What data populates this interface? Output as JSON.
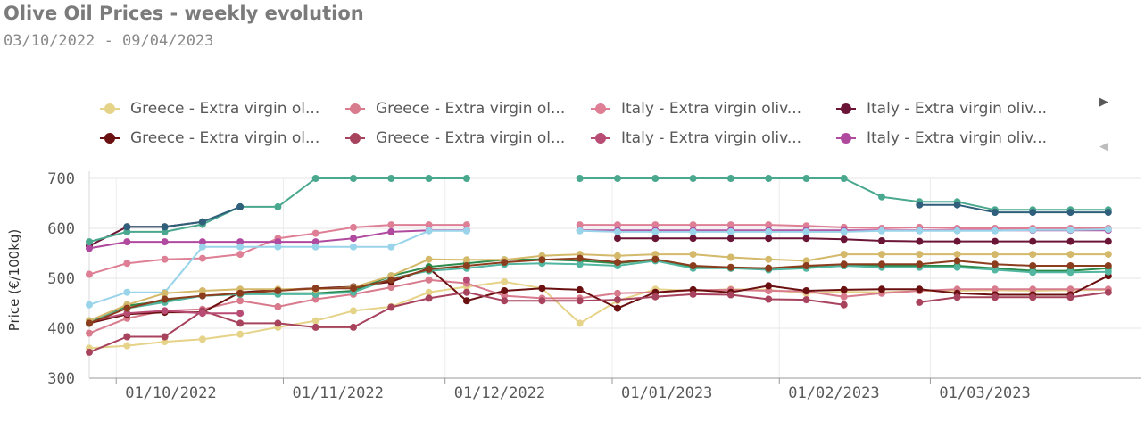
{
  "title": "Olive Oil Prices - weekly evolution",
  "subtitle": "03/10/2022 - 09/04/2023",
  "chart_data": {
    "type": "line",
    "ylabel": "Price (€/100kg)",
    "xlabel": "",
    "ylim": [
      300,
      700
    ],
    "yticks": [
      300,
      400,
      500,
      600,
      700
    ],
    "grid": true,
    "legend_position": "top",
    "x_range": [
      "2022-09-26",
      "2023-04-09"
    ],
    "x": [
      "2022-09-26",
      "2022-10-03",
      "2022-10-10",
      "2022-10-17",
      "2022-10-24",
      "2022-10-31",
      "2022-11-07",
      "2022-11-14",
      "2022-11-21",
      "2022-11-28",
      "2022-12-05",
      "2022-12-12",
      "2022-12-19",
      "2022-12-26",
      "2023-01-02",
      "2023-01-09",
      "2023-01-16",
      "2023-01-23",
      "2023-01-30",
      "2023-02-06",
      "2023-02-13",
      "2023-02-20",
      "2023-02-27",
      "2023-03-06",
      "2023-03-13",
      "2023-03-20",
      "2023-03-27",
      "2023-04-03"
    ],
    "x_ticks": [
      {
        "date": "2022-10-01",
        "label": "01/10/2022"
      },
      {
        "date": "2022-11-01",
        "label": "01/11/2022"
      },
      {
        "date": "2022-12-01",
        "label": "01/12/2022"
      },
      {
        "date": "2023-01-01",
        "label": "01/01/2023"
      },
      {
        "date": "2023-02-01",
        "label": "01/02/2023"
      },
      {
        "date": "2023-03-01",
        "label": "01/03/2023"
      }
    ],
    "series": [
      {
        "name": "Greece - Extra virgin ol...",
        "color": "#e6d38a",
        "legend_row": 0,
        "values": [
          360,
          365,
          373,
          378,
          388,
          402,
          415,
          435,
          443,
          472,
          483,
          493,
          480,
          410,
          455,
          478,
          475,
          478,
          477,
          470,
          473,
          472,
          475,
          475,
          476,
          475,
          476,
          477
        ]
      },
      {
        "name": "Greece - Extra virgin ol...",
        "color": "#d77b8d",
        "legend_row": 0,
        "values": [
          390,
          420,
          435,
          438,
          455,
          443,
          458,
          468,
          482,
          497,
          490,
          465,
          460,
          460,
          470,
          472,
          476,
          477,
          475,
          474,
          463,
          470,
          475,
          478,
          478,
          478,
          478,
          478
        ]
      },
      {
        "name": "Italy - Extra virgin oliv...",
        "color": "#de7f95",
        "legend_row": 0,
        "values": [
          508,
          530,
          538,
          540,
          548,
          580,
          590,
          602,
          607,
          607,
          607,
          null,
          null,
          607,
          607,
          607,
          607,
          607,
          607,
          605,
          602,
          600,
          602,
          600,
          600,
          600,
          600,
          600
        ]
      },
      {
        "name": "Italy - Extra virgin oliv...",
        "color": "#6b1536",
        "legend_row": 0,
        "values": [
          565,
          603,
          603,
          613,
          null,
          null,
          null,
          null,
          null,
          null,
          null,
          null,
          null,
          null,
          580,
          580,
          580,
          580,
          580,
          580,
          578,
          575,
          574,
          574,
          574,
          574,
          574,
          574
        ]
      },
      {
        "name": "Greece - Extra virgin ol...",
        "color": "#6b1010",
        "legend_row": 1,
        "values": [
          410,
          428,
          432,
          432,
          472,
          477,
          480,
          483,
          493,
          520,
          455,
          475,
          480,
          477,
          440,
          472,
          477,
          472,
          485,
          475,
          477,
          478,
          478,
          470,
          467,
          467,
          467,
          505
        ]
      },
      {
        "name": "Greece - Extra virgin ol...",
        "color": "#a8435e",
        "legend_row": 1,
        "values": [
          352,
          383,
          383,
          435,
          410,
          410,
          402,
          402,
          442,
          460,
          472,
          455,
          455,
          455,
          457,
          463,
          468,
          467,
          458,
          457,
          447,
          null,
          452,
          462,
          462,
          462,
          462,
          472
        ]
      },
      {
        "name": "Italy - Extra virgin oliv...",
        "color": "#b84c74",
        "legend_row": 1,
        "values": [
          413,
          430,
          435,
          430,
          430,
          null,
          null,
          null,
          null,
          null,
          497,
          null,
          null,
          null,
          null,
          null,
          null,
          null,
          null,
          null,
          null,
          null,
          null,
          null,
          null,
          null,
          null,
          null
        ]
      },
      {
        "name": "Italy - Extra virgin oliv...",
        "color": "#b04a9e",
        "legend_row": 1,
        "values": [
          560,
          573,
          573,
          573,
          573,
          573,
          573,
          580,
          593,
          596,
          596,
          null,
          null,
          596,
          596,
          596,
          596,
          596,
          596,
          596,
          596,
          596,
          596,
          596,
          596,
          596,
          596,
          596
        ]
      },
      {
        "name": "",
        "color": "#4aa88f",
        "legend_row": null,
        "values": [
          573,
          593,
          593,
          608,
          643,
          643,
          700,
          700,
          700,
          700,
          700,
          null,
          null,
          700,
          700,
          700,
          700,
          700,
          700,
          700,
          700,
          663,
          653,
          653,
          637,
          637,
          637,
          637
        ]
      },
      {
        "name": "",
        "color": "#2f5f7a",
        "legend_row": null,
        "values": [
          null,
          603,
          603,
          613,
          643,
          null,
          null,
          null,
          null,
          null,
          null,
          null,
          null,
          null,
          null,
          null,
          null,
          null,
          null,
          null,
          null,
          null,
          647,
          647,
          632,
          632,
          632,
          632
        ]
      },
      {
        "name": "",
        "color": "#9ad4ea",
        "legend_row": null,
        "values": [
          447,
          472,
          472,
          563,
          563,
          563,
          563,
          563,
          563,
          595,
          595,
          null,
          null,
          595,
          593,
          593,
          593,
          593,
          593,
          593,
          593,
          595,
          595,
          595,
          595,
          597,
          597,
          598
        ]
      },
      {
        "name": "",
        "color": "#2c8a4b",
        "legend_row": null,
        "values": [
          410,
          445,
          455,
          465,
          468,
          470,
          470,
          475,
          505,
          523,
          530,
          537,
          538,
          535,
          530,
          538,
          522,
          520,
          520,
          522,
          525,
          525,
          525,
          525,
          520,
          515,
          515,
          520
        ]
      },
      {
        "name": "",
        "color": "#52b6a0",
        "legend_row": null,
        "values": [
          415,
          440,
          452,
          465,
          468,
          468,
          468,
          472,
          500,
          515,
          520,
          528,
          530,
          528,
          525,
          535,
          520,
          520,
          517,
          520,
          525,
          522,
          522,
          522,
          517,
          512,
          512,
          513
        ]
      },
      {
        "name": "",
        "color": "#d4b96a",
        "legend_row": null,
        "values": [
          415,
          447,
          470,
          475,
          478,
          478,
          478,
          482,
          505,
          538,
          537,
          537,
          545,
          548,
          545,
          548,
          548,
          542,
          538,
          535,
          548,
          548,
          548,
          548,
          548,
          548,
          548,
          548
        ]
      },
      {
        "name": "",
        "color": "#8c3d1e",
        "legend_row": null,
        "values": [
          410,
          440,
          458,
          465,
          470,
          475,
          480,
          480,
          497,
          518,
          525,
          532,
          537,
          540,
          532,
          538,
          525,
          522,
          520,
          525,
          528,
          528,
          528,
          535,
          528,
          525,
          525,
          525
        ]
      }
    ]
  },
  "legend": {
    "next_icon": "triangle-right-icon",
    "prev_icon": "triangle-left-icon"
  }
}
